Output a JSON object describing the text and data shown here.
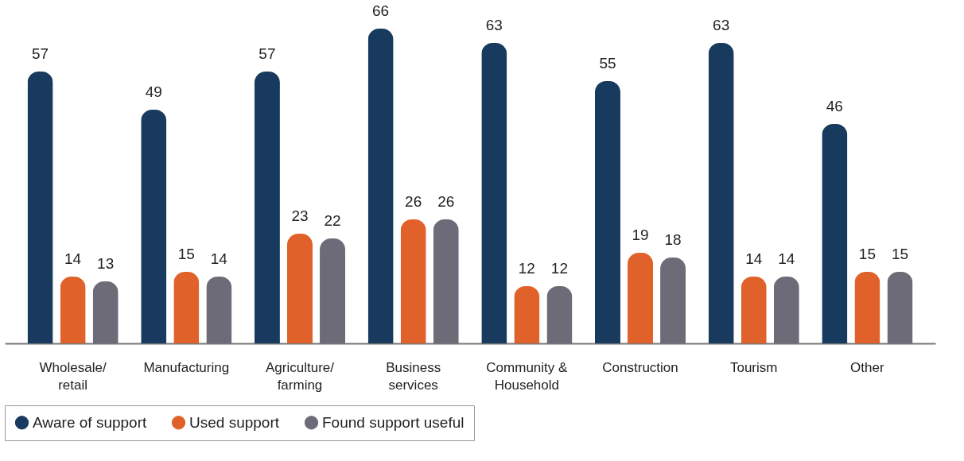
{
  "chart_data": {
    "type": "bar",
    "categories": [
      "Wholesale/ retail",
      "Manufacturing",
      "Agriculture/ farming",
      "Business services",
      "Community & Household",
      "Construction",
      "Tourism",
      "Other"
    ],
    "series": [
      {
        "name": "Aware of support",
        "color": "#173a5e",
        "values": [
          57,
          49,
          57,
          66,
          63,
          55,
          63,
          46
        ]
      },
      {
        "name": "Used support",
        "color": "#e0622a",
        "values": [
          14,
          15,
          23,
          26,
          12,
          19,
          14,
          15
        ]
      },
      {
        "name": "Found support useful",
        "color": "#6c6b77",
        "values": [
          13,
          14,
          22,
          26,
          12,
          18,
          14,
          15
        ]
      }
    ],
    "data_labels": true,
    "legend": "bottom",
    "grid": false
  }
}
